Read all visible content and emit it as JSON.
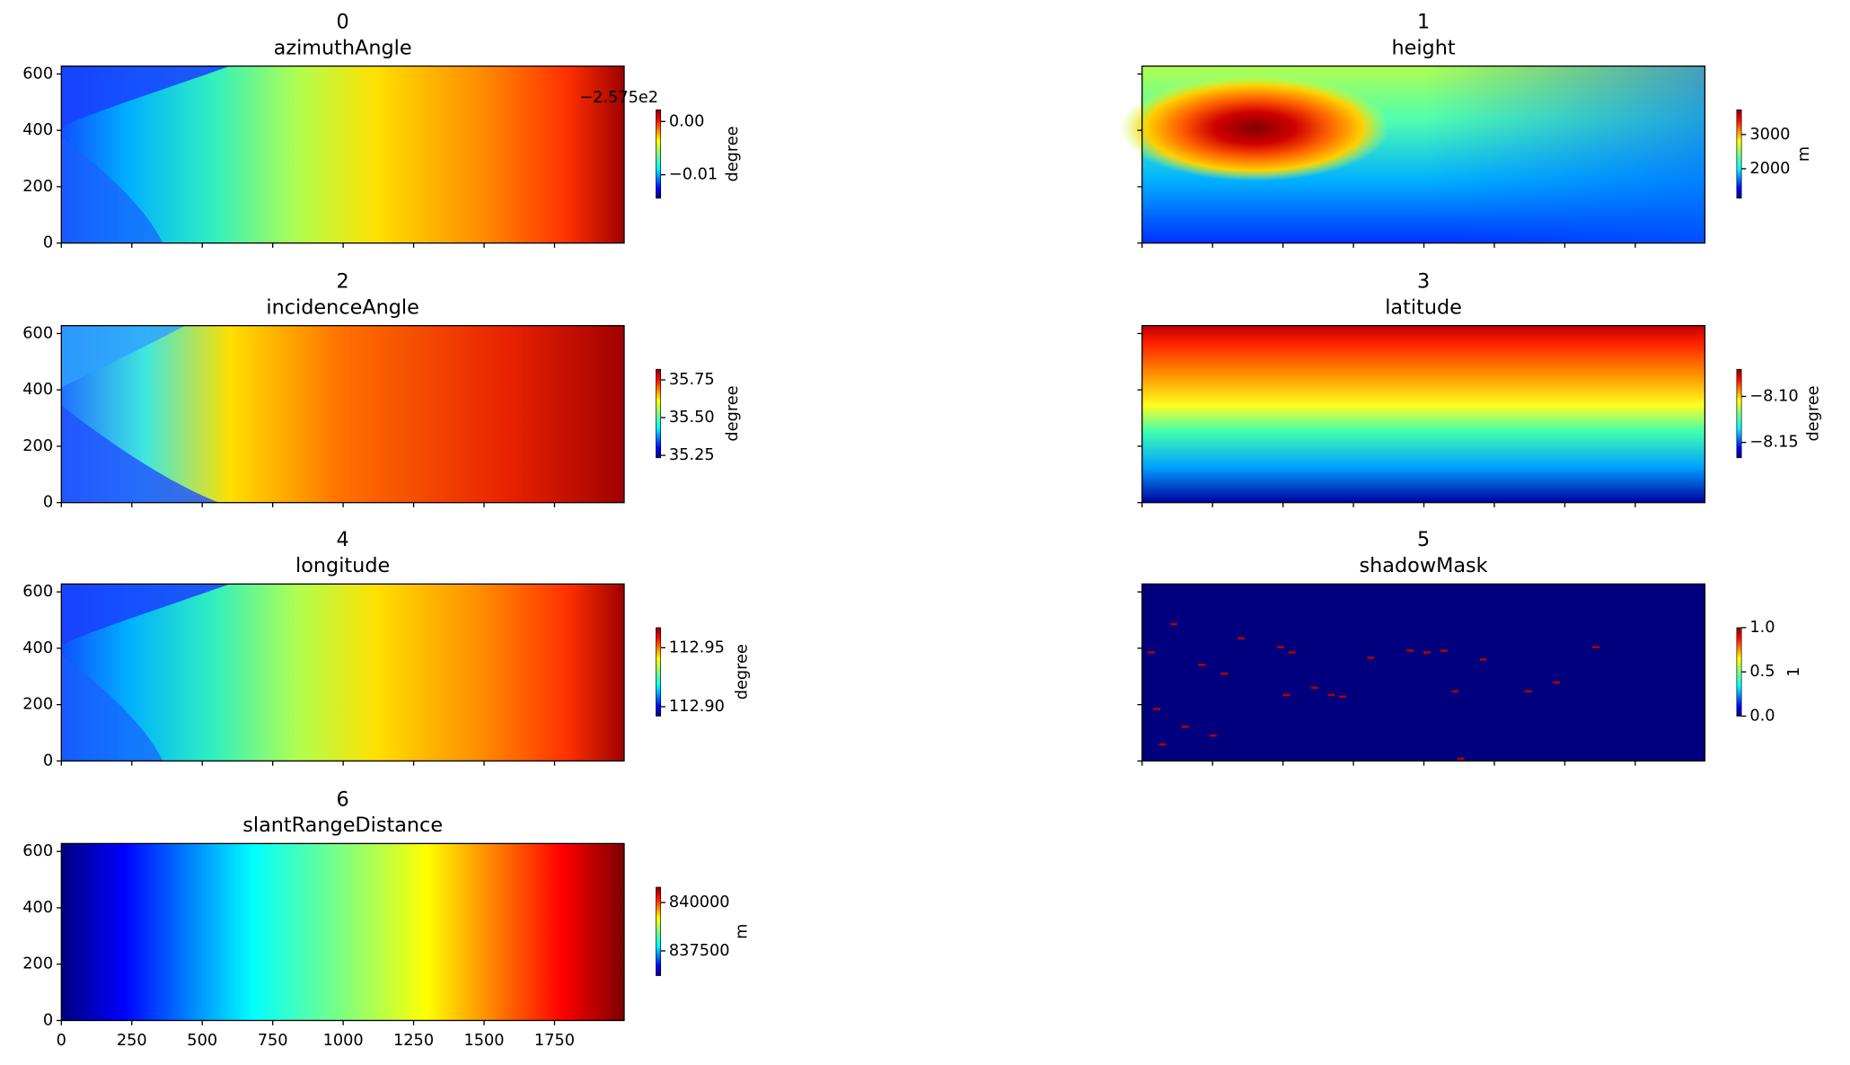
{
  "chart_data": [
    {
      "type": "heatmap",
      "title": "0",
      "subtitle": "azimuthAngle",
      "colormap": "jet",
      "xlim": [
        0,
        1997
      ],
      "ylim": [
        0,
        628
      ],
      "xticks": [
        0,
        250,
        500,
        750,
        1000,
        1250,
        1500,
        1750
      ],
      "yticks": [
        0,
        200,
        400,
        600
      ],
      "show_xtick_labels": false,
      "show_ytick_labels": true,
      "colorbar": {
        "label": "degree",
        "lim": [
          -0.0144,
          0.0022
        ],
        "offset_text": "−2.575e2",
        "ticks": [
          {
            "value": 0,
            "label": "0.00"
          },
          {
            "value": -0.01,
            "label": "−0.01"
          }
        ]
      }
    },
    {
      "type": "heatmap",
      "title": "1",
      "subtitle": "height",
      "colormap": "jet",
      "xlim": [
        0,
        1997
      ],
      "ylim": [
        0,
        628
      ],
      "xticks": [
        0,
        250,
        500,
        750,
        1000,
        1250,
        1500,
        1750
      ],
      "yticks": [
        0,
        200,
        400,
        600
      ],
      "show_xtick_labels": false,
      "show_ytick_labels": false,
      "colorbar": {
        "label": "m",
        "lim": [
          1138,
          3724
        ],
        "ticks": [
          3000,
          2000
        ]
      }
    },
    {
      "type": "heatmap",
      "title": "2",
      "subtitle": "incidenceAngle",
      "colormap": "jet",
      "xlim": [
        0,
        1997
      ],
      "ylim": [
        0,
        628
      ],
      "xticks": [
        0,
        250,
        500,
        750,
        1000,
        1250,
        1500,
        1750
      ],
      "yticks": [
        0,
        200,
        400,
        600
      ],
      "show_xtick_labels": false,
      "show_ytick_labels": true,
      "colorbar": {
        "label": "degree",
        "lim": [
          35.234,
          35.82
        ],
        "ticks": [
          35.75,
          {
            "value": 35.5,
            "label": "35.50"
          },
          35.25
        ]
      }
    },
    {
      "type": "heatmap",
      "title": "3",
      "subtitle": "latitude",
      "colormap": "jet",
      "xlim": [
        0,
        1997
      ],
      "ylim": [
        0,
        628
      ],
      "xticks": [
        0,
        250,
        500,
        750,
        1000,
        1250,
        1500,
        1750
      ],
      "yticks": [
        0,
        200,
        400,
        600
      ],
      "show_xtick_labels": false,
      "show_ytick_labels": false,
      "colorbar": {
        "label": "degree",
        "lim": [
          -8.1667,
          -8.0705
        ],
        "ticks": [
          {
            "value": -8.1,
            "label": "−8.10"
          },
          {
            "value": -8.15,
            "label": "−8.15"
          }
        ]
      }
    },
    {
      "type": "heatmap",
      "title": "4",
      "subtitle": "longitude",
      "colormap": "jet",
      "xlim": [
        0,
        1997
      ],
      "ylim": [
        0,
        628
      ],
      "xticks": [
        0,
        250,
        500,
        750,
        1000,
        1250,
        1500,
        1750
      ],
      "yticks": [
        0,
        200,
        400,
        600
      ],
      "show_xtick_labels": false,
      "show_ytick_labels": true,
      "colorbar": {
        "label": "degree",
        "lim": [
          112.892,
          112.967
        ],
        "ticks": [
          112.95,
          {
            "value": 112.9,
            "label": "112.90"
          }
        ]
      }
    },
    {
      "type": "heatmap",
      "title": "5",
      "subtitle": "shadowMask",
      "colormap": "jet",
      "xlim": [
        0,
        1997
      ],
      "ylim": [
        0,
        628
      ],
      "xticks": [
        0,
        250,
        500,
        750,
        1000,
        1250,
        1500,
        1750
      ],
      "yticks": [
        0,
        200,
        400,
        600
      ],
      "show_xtick_labels": false,
      "show_ytick_labels": false,
      "colorbar": {
        "label": "1",
        "lim": [
          0,
          1
        ],
        "ticks": [
          {
            "value": 1,
            "label": "1.0"
          },
          0.5,
          {
            "value": 0,
            "label": "0.0"
          }
        ]
      }
    },
    {
      "type": "heatmap",
      "title": "6",
      "subtitle": "slantRangeDistance",
      "colormap": "jet",
      "xlim": [
        0,
        1997
      ],
      "ylim": [
        0,
        628
      ],
      "xticks": [
        0,
        250,
        500,
        750,
        1000,
        1250,
        1500,
        1750
      ],
      "yticks": [
        0,
        200,
        400,
        600
      ],
      "show_xtick_labels": true,
      "show_ytick_labels": true,
      "colorbar": {
        "label": "m",
        "lim": [
          836220,
          840793
        ],
        "ticks": [
          840000,
          837500
        ]
      }
    }
  ]
}
